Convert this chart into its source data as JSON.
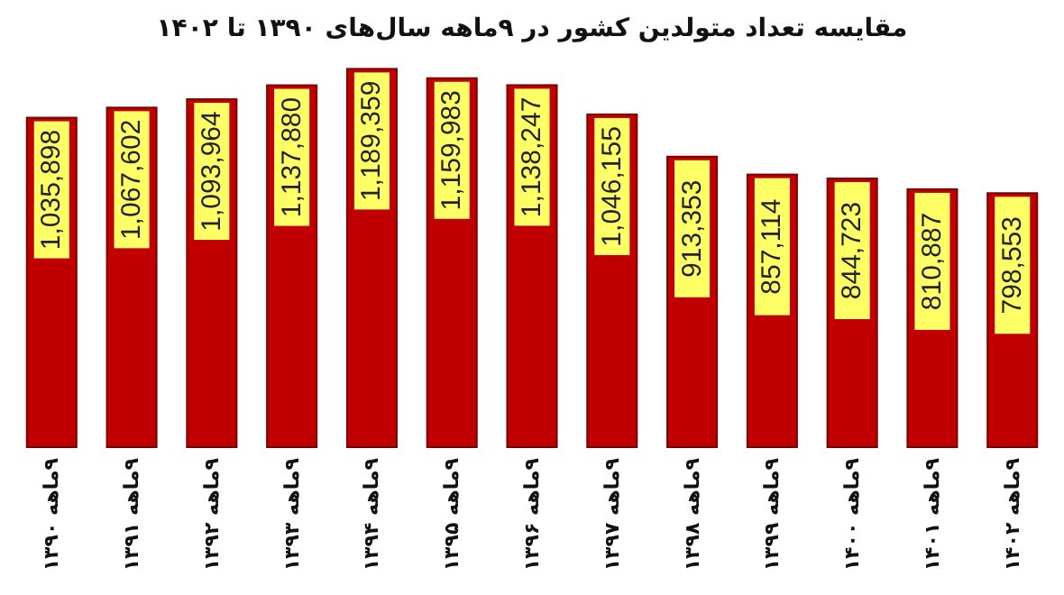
{
  "chart_data": {
    "type": "bar",
    "title": "مقایسه تعداد متولدین کشور در ۹ماهه سال‌های ۱۳۹۰ تا ۱۴۰۲",
    "categories": [
      "۹ماهه ۱۳۹۰",
      "۹ماهه ۱۳۹۱",
      "۹ماهه ۱۳۹۲",
      "۹ماهه ۱۳۹۳",
      "۹ماهه ۱۳۹۴",
      "۹ماهه ۱۳۹۵",
      "۹ماهه ۱۳۹۶",
      "۹ماهه ۱۳۹۷",
      "۹ماهه ۱۳۹۸",
      "۹ماهه ۱۳۹۹",
      "۹ماهه ۱۴۰۰",
      "۹ماهه ۱۴۰۱",
      "۹ماهه ۱۴۰۲"
    ],
    "values": [
      1035898,
      1067602,
      1093964,
      1137880,
      1189359,
      1159983,
      1138247,
      1046155,
      913353,
      857114,
      844723,
      810887,
      798553
    ],
    "value_labels": [
      "1,035,898",
      "1,067,602",
      "1,093,964",
      "1,137,880",
      "1,189,359",
      "1,159,983",
      "1,138,247",
      "1,046,155",
      "913,353",
      "857,114",
      "844,723",
      "810,887",
      "798,553"
    ],
    "color": "#c00000"
  }
}
